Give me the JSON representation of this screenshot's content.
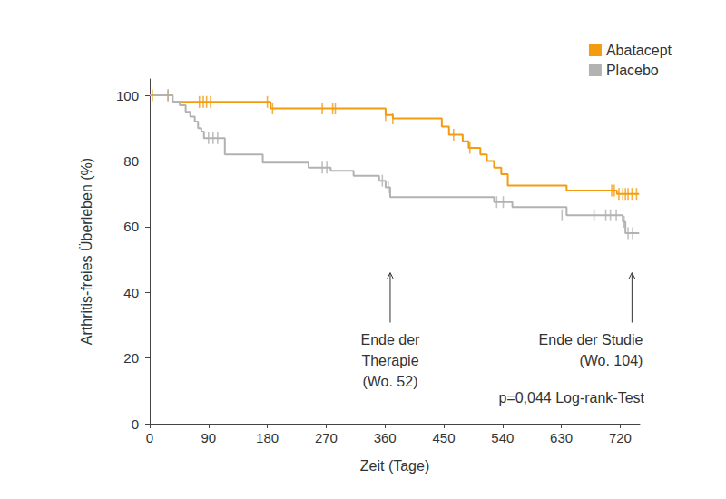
{
  "chart_data": {
    "type": "step",
    "x_label": "Zeit (Tage)",
    "y_label": "Arthritis-freies Überleben (%)",
    "xlim": [
      0,
      750
    ],
    "xticks": [
      0,
      90,
      180,
      270,
      360,
      450,
      540,
      630,
      720
    ],
    "ylim": [
      0,
      105
    ],
    "yticks": [
      0,
      20,
      40,
      60,
      80,
      100
    ],
    "grid": false,
    "legend": "top-right",
    "marker": "vline",
    "series": [
      {
        "name": "Abatacept",
        "color": "#f39c12",
        "x": [
          0,
          35,
          185,
          361,
          372,
          447,
          458,
          479,
          488,
          506,
          516,
          527,
          538,
          548,
          638,
          715,
          749
        ],
        "values": [
          100,
          98,
          96,
          94,
          93,
          90.5,
          88,
          86,
          84,
          82,
          80,
          78,
          76,
          72.5,
          71,
          70,
          70
        ],
        "censor_x": [
          4,
          28,
          76,
          82,
          87,
          93,
          180,
          188,
          264,
          280,
          284,
          361,
          372,
          465,
          490,
          707,
          711,
          718,
          724,
          728,
          732,
          738,
          745
        ],
        "censor_values": [
          100,
          100,
          98,
          98,
          98,
          98,
          98,
          96,
          96,
          96,
          96,
          94,
          93,
          88,
          84,
          71,
          71,
          70,
          70,
          70,
          70,
          70,
          70
        ]
      },
      {
        "name": "Placebo",
        "color": "#b2b2b2",
        "x": [
          0,
          35,
          46,
          55,
          62,
          69,
          74,
          79,
          83,
          115,
          173,
          243,
          277,
          312,
          351,
          361,
          368,
          527,
          555,
          638,
          724,
          728,
          749
        ],
        "values": [
          100,
          98,
          97,
          95,
          93.5,
          92,
          90,
          89,
          87,
          82,
          79.5,
          78,
          77,
          75.5,
          74,
          72,
          69,
          67.5,
          66,
          63.5,
          61.5,
          58,
          58
        ],
        "censor_x": [
          28,
          90,
          97,
          104,
          264,
          271,
          356,
          365,
          531,
          541,
          631,
          680,
          698,
          705,
          714,
          726,
          732,
          739
        ],
        "censor_values": [
          100,
          87,
          87,
          87,
          78,
          78,
          74,
          72,
          67.5,
          67.5,
          63.5,
          63.5,
          63.5,
          63.5,
          63.5,
          61.5,
          58,
          58
        ]
      }
    ],
    "annotations": [
      {
        "text": "Ende der\nTherapie\n(Wo. 52)",
        "x": 368,
        "y": 46
      },
      {
        "text": "Ende der Studie\n(Wo. 104)",
        "x": 738,
        "y": 46
      }
    ],
    "footnote": "p=0,044 Log-rank-Test"
  }
}
